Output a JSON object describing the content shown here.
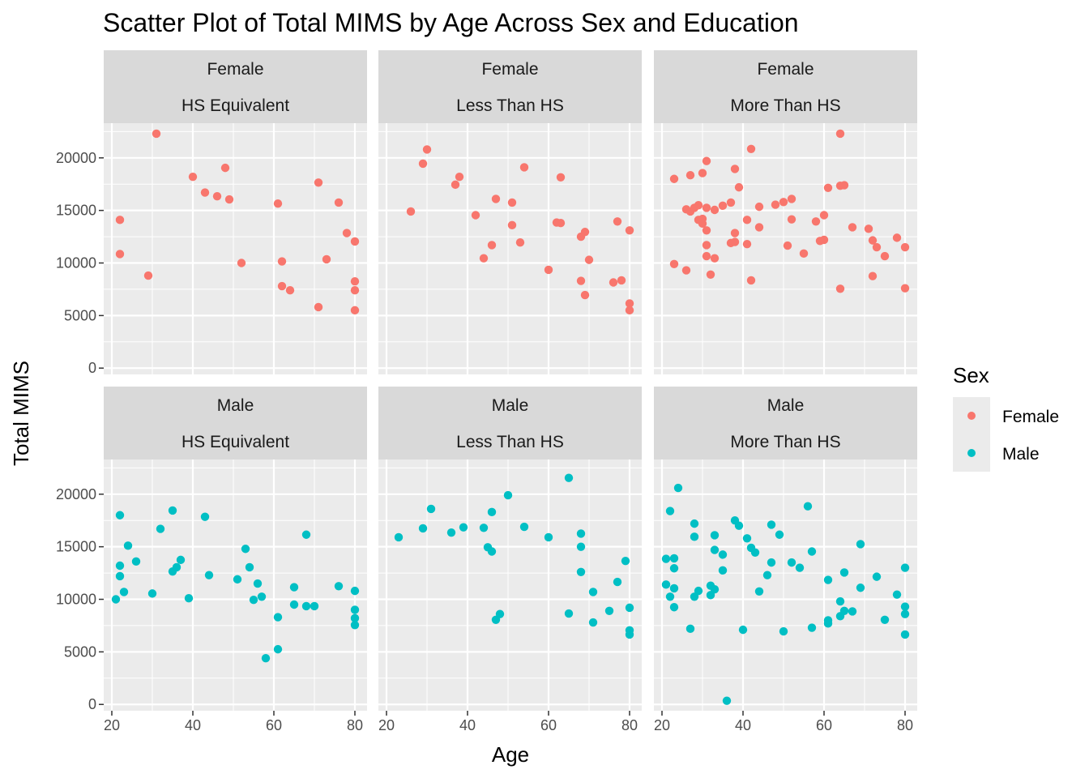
{
  "chart_data": {
    "type": "scatter",
    "title": "Scatter Plot of Total MIMS by Age Across Sex and Education",
    "xlabel": "Age",
    "ylabel": "Total MIMS",
    "xlim": [
      18,
      83
    ],
    "ylim": [
      -600,
      23300
    ],
    "x_ticks": [
      20,
      40,
      60,
      80
    ],
    "y_ticks": [
      0,
      5000,
      10000,
      15000,
      20000
    ],
    "x_tick_labels": [
      "20",
      "40",
      "60",
      "80"
    ],
    "y_tick_labels": [
      "0",
      "5000",
      "10000",
      "15000",
      "20000"
    ],
    "grid": true,
    "legend": {
      "title": "Sex",
      "position": "right",
      "entries": [
        {
          "label": "Female",
          "color": "#F8766D"
        },
        {
          "label": "Male",
          "color": "#00BFC4"
        }
      ]
    },
    "facets": [
      {
        "row": 0,
        "col": 0,
        "sex": "Female",
        "education": "HS Equivalent",
        "color": "#F8766D",
        "points": [
          [
            22,
            14100
          ],
          [
            22,
            10850
          ],
          [
            29,
            8800
          ],
          [
            31,
            22300
          ],
          [
            40,
            18200
          ],
          [
            43,
            16700
          ],
          [
            46,
            16350
          ],
          [
            48,
            19050
          ],
          [
            49,
            16050
          ],
          [
            52,
            10000
          ],
          [
            61,
            15650
          ],
          [
            62,
            10150
          ],
          [
            62,
            7800
          ],
          [
            64,
            7400
          ],
          [
            71,
            17650
          ],
          [
            71,
            5800
          ],
          [
            73,
            10350
          ],
          [
            76,
            15750
          ],
          [
            78,
            12850
          ],
          [
            80,
            12050
          ],
          [
            80,
            8250
          ],
          [
            80,
            7400
          ],
          [
            80,
            5500
          ]
        ]
      },
      {
        "row": 0,
        "col": 1,
        "sex": "Female",
        "education": "Less Than HS",
        "color": "#F8766D",
        "points": [
          [
            26,
            14900
          ],
          [
            29,
            19450
          ],
          [
            30,
            20800
          ],
          [
            37,
            17450
          ],
          [
            38,
            18200
          ],
          [
            42,
            14550
          ],
          [
            44,
            10450
          ],
          [
            46,
            11700
          ],
          [
            47,
            16100
          ],
          [
            51,
            15750
          ],
          [
            51,
            13600
          ],
          [
            53,
            11950
          ],
          [
            54,
            19100
          ],
          [
            60,
            9350
          ],
          [
            62,
            13850
          ],
          [
            63,
            13800
          ],
          [
            63,
            18150
          ],
          [
            68,
            12500
          ],
          [
            68,
            8300
          ],
          [
            69,
            12950
          ],
          [
            69,
            6950
          ],
          [
            70,
            10300
          ],
          [
            76,
            8150
          ],
          [
            77,
            13950
          ],
          [
            78,
            8350
          ],
          [
            80,
            13100
          ],
          [
            80,
            6150
          ],
          [
            80,
            5500
          ]
        ]
      },
      {
        "row": 0,
        "col": 2,
        "sex": "Female",
        "education": "More Than HS",
        "color": "#F8766D",
        "points": [
          [
            23,
            18000
          ],
          [
            23,
            9900
          ],
          [
            26,
            15100
          ],
          [
            26,
            9300
          ],
          [
            27,
            18350
          ],
          [
            27,
            14900
          ],
          [
            28,
            15250
          ],
          [
            29,
            15500
          ],
          [
            29,
            14100
          ],
          [
            30,
            18550
          ],
          [
            30,
            14200
          ],
          [
            30,
            13750
          ],
          [
            31,
            19700
          ],
          [
            31,
            15250
          ],
          [
            31,
            13100
          ],
          [
            31,
            11700
          ],
          [
            31,
            10650
          ],
          [
            32,
            8900
          ],
          [
            33,
            10450
          ],
          [
            33,
            15050
          ],
          [
            35,
            15450
          ],
          [
            37,
            15750
          ],
          [
            37,
            11900
          ],
          [
            38,
            18950
          ],
          [
            38,
            12850
          ],
          [
            38,
            12000
          ],
          [
            39,
            17200
          ],
          [
            41,
            14100
          ],
          [
            41,
            11800
          ],
          [
            42,
            8350
          ],
          [
            42,
            20850
          ],
          [
            44,
            15350
          ],
          [
            44,
            13400
          ],
          [
            48,
            15550
          ],
          [
            50,
            15800
          ],
          [
            51,
            11650
          ],
          [
            52,
            16100
          ],
          [
            52,
            14150
          ],
          [
            55,
            10900
          ],
          [
            58,
            13950
          ],
          [
            59,
            12100
          ],
          [
            60,
            12200
          ],
          [
            60,
            14550
          ],
          [
            61,
            17150
          ],
          [
            64,
            17350
          ],
          [
            64,
            7550
          ],
          [
            64,
            22300
          ],
          [
            65,
            17400
          ],
          [
            67,
            13400
          ],
          [
            71,
            13250
          ],
          [
            72,
            12150
          ],
          [
            72,
            8750
          ],
          [
            73,
            11500
          ],
          [
            75,
            10650
          ],
          [
            78,
            12400
          ],
          [
            80,
            11500
          ],
          [
            80,
            7600
          ]
        ]
      },
      {
        "row": 1,
        "col": 0,
        "sex": "Male",
        "education": "HS Equivalent",
        "color": "#00BFC4",
        "points": [
          [
            21,
            10000
          ],
          [
            22,
            18000
          ],
          [
            22,
            13200
          ],
          [
            22,
            12200
          ],
          [
            23,
            10700
          ],
          [
            24,
            15100
          ],
          [
            26,
            13600
          ],
          [
            30,
            10550
          ],
          [
            32,
            16700
          ],
          [
            35,
            18450
          ],
          [
            35,
            12650
          ],
          [
            36,
            13050
          ],
          [
            37,
            13750
          ],
          [
            39,
            10100
          ],
          [
            43,
            17850
          ],
          [
            44,
            12300
          ],
          [
            51,
            11900
          ],
          [
            53,
            14800
          ],
          [
            54,
            13050
          ],
          [
            55,
            9950
          ],
          [
            56,
            11500
          ],
          [
            57,
            10250
          ],
          [
            58,
            4400
          ],
          [
            61,
            8300
          ],
          [
            61,
            5250
          ],
          [
            65,
            11150
          ],
          [
            65,
            9500
          ],
          [
            68,
            16150
          ],
          [
            68,
            9350
          ],
          [
            70,
            9350
          ],
          [
            76,
            11250
          ],
          [
            80,
            10800
          ],
          [
            80,
            9000
          ],
          [
            80,
            8200
          ],
          [
            80,
            7550
          ]
        ]
      },
      {
        "row": 1,
        "col": 1,
        "sex": "Male",
        "education": "Less Than HS",
        "color": "#00BFC4",
        "points": [
          [
            23,
            15900
          ],
          [
            29,
            16750
          ],
          [
            31,
            18600
          ],
          [
            36,
            16350
          ],
          [
            39,
            16850
          ],
          [
            44,
            16800
          ],
          [
            45,
            14950
          ],
          [
            46,
            14550
          ],
          [
            46,
            18300
          ],
          [
            47,
            8050
          ],
          [
            48,
            8600
          ],
          [
            50,
            19900
          ],
          [
            54,
            16900
          ],
          [
            60,
            15900
          ],
          [
            65,
            21550
          ],
          [
            65,
            8650
          ],
          [
            68,
            16250
          ],
          [
            68,
            15000
          ],
          [
            68,
            12600
          ],
          [
            71,
            10700
          ],
          [
            71,
            7800
          ],
          [
            75,
            8900
          ],
          [
            77,
            11650
          ],
          [
            79,
            13650
          ],
          [
            80,
            9200
          ],
          [
            80,
            7050
          ],
          [
            80,
            6650
          ]
        ]
      },
      {
        "row": 1,
        "col": 2,
        "sex": "Male",
        "education": "More Than HS",
        "color": "#00BFC4",
        "points": [
          [
            21,
            13850
          ],
          [
            21,
            11400
          ],
          [
            22,
            18400
          ],
          [
            22,
            10250
          ],
          [
            23,
            13900
          ],
          [
            23,
            12950
          ],
          [
            23,
            11050
          ],
          [
            23,
            9250
          ],
          [
            24,
            20600
          ],
          [
            27,
            7200
          ],
          [
            28,
            17200
          ],
          [
            28,
            15950
          ],
          [
            28,
            10250
          ],
          [
            29,
            10800
          ],
          [
            32,
            11300
          ],
          [
            32,
            10400
          ],
          [
            33,
            16100
          ],
          [
            33,
            14700
          ],
          [
            33,
            10950
          ],
          [
            35,
            14250
          ],
          [
            35,
            12750
          ],
          [
            36,
            350
          ],
          [
            38,
            17500
          ],
          [
            39,
            17000
          ],
          [
            40,
            7100
          ],
          [
            41,
            15800
          ],
          [
            42,
            14900
          ],
          [
            43,
            14450
          ],
          [
            44,
            10750
          ],
          [
            46,
            12300
          ],
          [
            47,
            17100
          ],
          [
            47,
            13500
          ],
          [
            49,
            16150
          ],
          [
            50,
            6950
          ],
          [
            52,
            13500
          ],
          [
            54,
            13000
          ],
          [
            56,
            18850
          ],
          [
            57,
            14550
          ],
          [
            57,
            7300
          ],
          [
            61,
            11850
          ],
          [
            61,
            8000
          ],
          [
            61,
            7700
          ],
          [
            64,
            9800
          ],
          [
            64,
            8400
          ],
          [
            65,
            12550
          ],
          [
            65,
            8900
          ],
          [
            67,
            8850
          ],
          [
            69,
            15250
          ],
          [
            69,
            11100
          ],
          [
            73,
            12150
          ],
          [
            75,
            8050
          ],
          [
            78,
            10450
          ],
          [
            80,
            13000
          ],
          [
            80,
            9300
          ],
          [
            80,
            8600
          ],
          [
            80,
            6650
          ]
        ]
      }
    ]
  }
}
